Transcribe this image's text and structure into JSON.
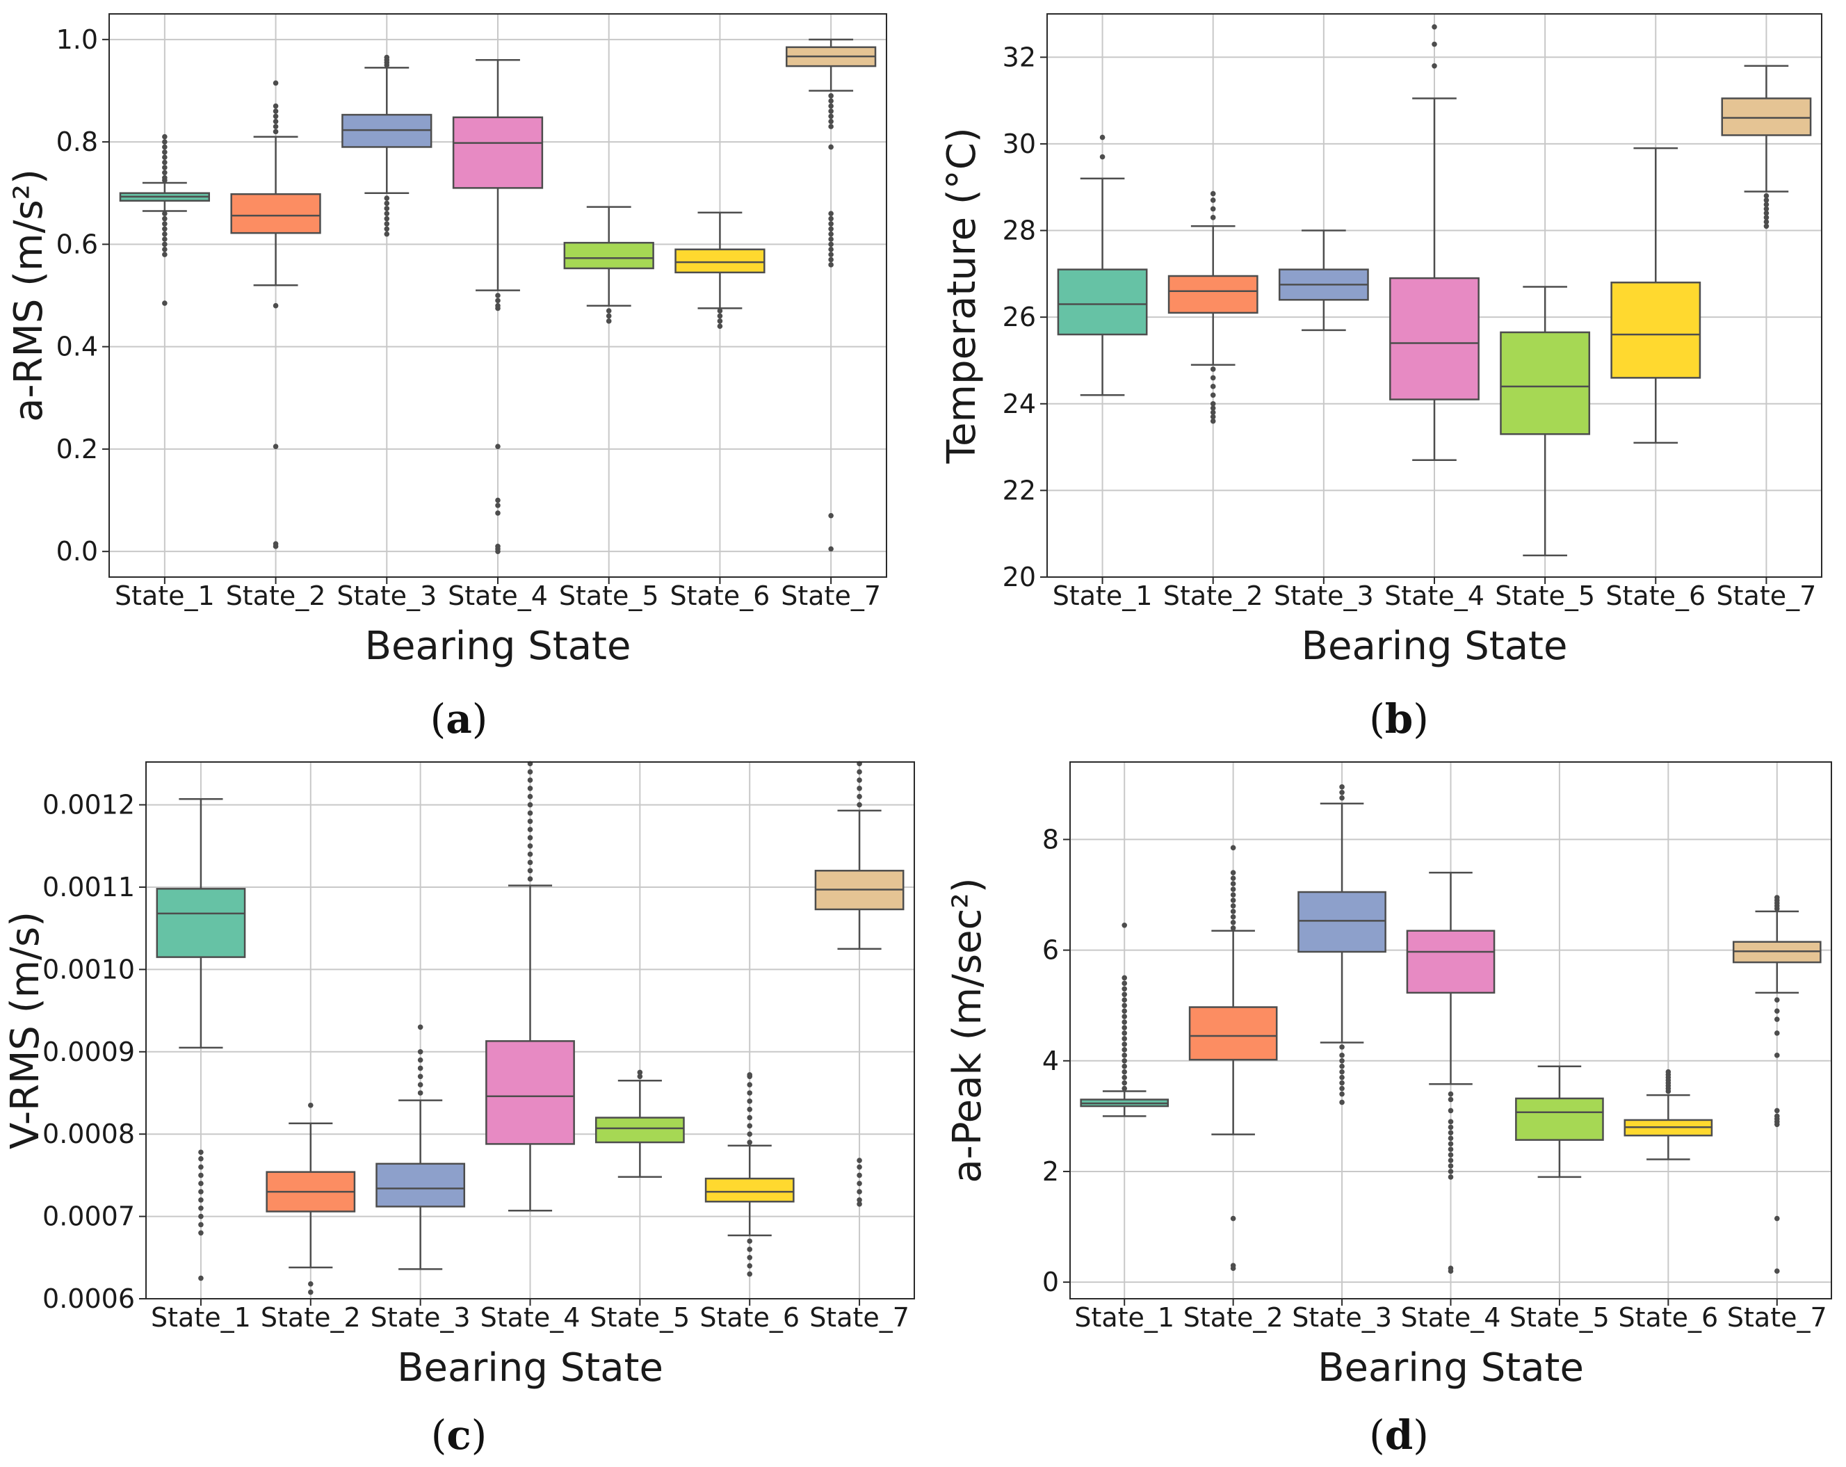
{
  "figure": {
    "captions": [
      {
        "open": "(",
        "letter": "a",
        "close": ")"
      },
      {
        "open": "(",
        "letter": "b",
        "close": ")"
      },
      {
        "open": "(",
        "letter": "c",
        "close": ")"
      },
      {
        "open": "(",
        "letter": "d",
        "close": ")"
      }
    ]
  },
  "chart_data": [
    {
      "type": "box",
      "id": "a",
      "xlabel": "Bearing State",
      "ylabel": "a-RMS (m/s²)",
      "ylim": [
        -0.05,
        1.05
      ],
      "yticks": [
        0.0,
        0.2,
        0.4,
        0.6,
        0.8,
        1.0
      ],
      "ytick_labels": [
        "0.0",
        "0.2",
        "0.4",
        "0.6",
        "0.8",
        "1.0"
      ],
      "categories": [
        "State_1",
        "State_2",
        "State_3",
        "State_4",
        "State_5",
        "State_6",
        "State_7"
      ],
      "colors": [
        "#66c2a5",
        "#fc8d62",
        "#8da0cb",
        "#e78ac3",
        "#a6d854",
        "#ffd92f",
        "#e5c494"
      ],
      "boxes": [
        {
          "low": 0.665,
          "q1": 0.685,
          "median": 0.693,
          "q3": 0.7,
          "high": 0.72,
          "outliers": [
            0.58,
            0.59,
            0.6,
            0.61,
            0.62,
            0.63,
            0.64,
            0.65,
            0.66,
            0.725,
            0.73,
            0.74,
            0.75,
            0.76,
            0.77,
            0.78,
            0.79,
            0.8,
            0.81,
            0.485
          ]
        },
        {
          "low": 0.52,
          "q1": 0.622,
          "median": 0.656,
          "q3": 0.698,
          "high": 0.81,
          "outliers": [
            0.48,
            0.205,
            0.01,
            0.015,
            0.82,
            0.83,
            0.84,
            0.85,
            0.86,
            0.87,
            0.915
          ]
        },
        {
          "low": 0.7,
          "q1": 0.79,
          "median": 0.823,
          "q3": 0.853,
          "high": 0.945,
          "outliers": [
            0.62,
            0.63,
            0.64,
            0.65,
            0.66,
            0.67,
            0.68,
            0.69,
            0.95,
            0.955,
            0.96,
            0.965
          ]
        },
        {
          "low": 0.51,
          "q1": 0.71,
          "median": 0.798,
          "q3": 0.848,
          "high": 0.96,
          "outliers": [
            0.475,
            0.48,
            0.49,
            0.5,
            0.205,
            0.1,
            0.09,
            0.075,
            0.01,
            0.005,
            0.0
          ]
        },
        {
          "low": 0.48,
          "q1": 0.553,
          "median": 0.573,
          "q3": 0.603,
          "high": 0.673,
          "outliers": [
            0.45,
            0.46,
            0.47
          ]
        },
        {
          "low": 0.475,
          "q1": 0.545,
          "median": 0.565,
          "q3": 0.59,
          "high": 0.662,
          "outliers": [
            0.44,
            0.45,
            0.46,
            0.47
          ]
        },
        {
          "low": 0.9,
          "q1": 0.948,
          "median": 0.967,
          "q3": 0.985,
          "high": 1.0,
          "outliers": [
            0.89,
            0.88,
            0.87,
            0.86,
            0.85,
            0.84,
            0.83,
            0.79,
            0.66,
            0.65,
            0.64,
            0.63,
            0.62,
            0.61,
            0.6,
            0.59,
            0.58,
            0.57,
            0.56,
            0.07,
            0.005
          ]
        }
      ]
    },
    {
      "type": "box",
      "id": "b",
      "xlabel": "Bearing State",
      "ylabel": "Temperature (°C)",
      "ylim": [
        20,
        33
      ],
      "yticks": [
        20,
        22,
        24,
        26,
        28,
        30,
        32
      ],
      "ytick_labels": [
        "20",
        "22",
        "24",
        "26",
        "28",
        "30",
        "32"
      ],
      "categories": [
        "State_1",
        "State_2",
        "State_3",
        "State_4",
        "State_5",
        "State_6",
        "State_7"
      ],
      "colors": [
        "#66c2a5",
        "#fc8d62",
        "#8da0cb",
        "#e78ac3",
        "#a6d854",
        "#ffd92f",
        "#e5c494"
      ],
      "boxes": [
        {
          "low": 24.2,
          "q1": 25.6,
          "median": 26.3,
          "q3": 27.1,
          "high": 29.2,
          "outliers": [
            29.7,
            30.15
          ]
        },
        {
          "low": 24.9,
          "q1": 26.1,
          "median": 26.6,
          "q3": 26.95,
          "high": 28.1,
          "outliers": [
            24.8,
            24.6,
            24.4,
            24.2,
            24.0,
            23.9,
            23.8,
            23.7,
            23.6,
            28.3,
            28.5,
            28.7,
            28.85
          ]
        },
        {
          "low": 25.7,
          "q1": 26.4,
          "median": 26.75,
          "q3": 27.1,
          "high": 28.0,
          "outliers": []
        },
        {
          "low": 22.7,
          "q1": 24.1,
          "median": 25.4,
          "q3": 26.9,
          "high": 31.05,
          "outliers": [
            31.8,
            32.3,
            32.7
          ]
        },
        {
          "low": 20.5,
          "q1": 23.3,
          "median": 24.4,
          "q3": 25.65,
          "high": 26.7,
          "outliers": []
        },
        {
          "low": 23.1,
          "q1": 24.6,
          "median": 25.6,
          "q3": 26.8,
          "high": 29.9,
          "outliers": []
        },
        {
          "low": 28.9,
          "q1": 30.2,
          "median": 30.6,
          "q3": 31.05,
          "high": 31.8,
          "outliers": [
            28.8,
            28.7,
            28.6,
            28.5,
            28.4,
            28.3,
            28.2,
            28.1
          ]
        }
      ]
    },
    {
      "type": "box",
      "id": "c",
      "xlabel": "Bearing State",
      "ylabel": "V-RMS (m/s)",
      "ylim": [
        0.0006,
        0.001252
      ],
      "yticks": [
        0.0006,
        0.0007,
        0.0008,
        0.0009,
        0.001,
        0.0011,
        0.0012
      ],
      "ytick_labels": [
        "0.0006",
        "0.0007",
        "0.0008",
        "0.0009",
        "0.0010",
        "0.0011",
        "0.0012"
      ],
      "categories": [
        "State_1",
        "State_2",
        "State_3",
        "State_4",
        "State_5",
        "State_6",
        "State_7"
      ],
      "colors": [
        "#66c2a5",
        "#fc8d62",
        "#8da0cb",
        "#e78ac3",
        "#a6d854",
        "#ffd92f",
        "#e5c494"
      ],
      "boxes": [
        {
          "low": 0.000905,
          "q1": 0.001015,
          "median": 0.001068,
          "q3": 0.001098,
          "high": 0.001207,
          "outliers": [
            0.000778,
            0.00077,
            0.00076,
            0.00075,
            0.00074,
            0.00073,
            0.00072,
            0.00071,
            0.0007,
            0.00069,
            0.00068,
            0.000625
          ]
        },
        {
          "low": 0.000638,
          "q1": 0.000706,
          "median": 0.00073,
          "q3": 0.000754,
          "high": 0.000813,
          "outliers": [
            0.000618,
            0.000608,
            0.000835
          ]
        },
        {
          "low": 0.000636,
          "q1": 0.000712,
          "median": 0.000734,
          "q3": 0.000764,
          "high": 0.000841,
          "outliers": [
            0.00085,
            0.00086,
            0.00087,
            0.00088,
            0.00089,
            0.0009,
            0.00093
          ]
        },
        {
          "low": 0.000707,
          "q1": 0.000788,
          "median": 0.000846,
          "q3": 0.000913,
          "high": 0.001102,
          "outliers": [
            0.00111,
            0.00112,
            0.00113,
            0.00114,
            0.00115,
            0.00116,
            0.00117,
            0.00118,
            0.00119,
            0.0012,
            0.00121,
            0.00122,
            0.00123,
            0.00124,
            0.00125
          ]
        },
        {
          "low": 0.000748,
          "q1": 0.00079,
          "median": 0.000807,
          "q3": 0.00082,
          "high": 0.000865,
          "outliers": [
            0.00087,
            0.000875
          ]
        },
        {
          "low": 0.000677,
          "q1": 0.000718,
          "median": 0.00073,
          "q3": 0.000746,
          "high": 0.000786,
          "outliers": [
            0.00067,
            0.00066,
            0.00065,
            0.00064,
            0.00063,
            0.00079,
            0.0008,
            0.00081,
            0.00082,
            0.00083,
            0.00084,
            0.00085,
            0.00086,
            0.00087,
            0.000872
          ]
        },
        {
          "low": 0.001025,
          "q1": 0.001073,
          "median": 0.001097,
          "q3": 0.00112,
          "high": 0.001193,
          "outliers": [
            0.0012,
            0.00121,
            0.00122,
            0.00123,
            0.00124,
            0.00125,
            0.000768,
            0.00076,
            0.00075,
            0.00074,
            0.00073,
            0.00072,
            0.000715
          ]
        }
      ]
    },
    {
      "type": "box",
      "id": "d",
      "xlabel": "Bearing State",
      "ylabel": "a-Peak (m/sec²)",
      "ylim": [
        -0.3,
        9.4
      ],
      "yticks": [
        0,
        2,
        4,
        6,
        8
      ],
      "ytick_labels": [
        "0",
        "2",
        "4",
        "6",
        "8"
      ],
      "categories": [
        "State_1",
        "State_2",
        "State_3",
        "State_4",
        "State_5",
        "State_6",
        "State_7"
      ],
      "colors": [
        "#66c2a5",
        "#fc8d62",
        "#8da0cb",
        "#e78ac3",
        "#a6d854",
        "#ffd92f",
        "#e5c494"
      ],
      "boxes": [
        {
          "low": 3.0,
          "q1": 3.18,
          "median": 3.23,
          "q3": 3.3,
          "high": 3.45,
          "outliers": [
            3.5,
            3.6,
            3.7,
            3.8,
            3.9,
            4.0,
            4.1,
            4.2,
            4.3,
            4.4,
            4.5,
            4.6,
            4.7,
            4.8,
            4.9,
            5.0,
            5.1,
            5.2,
            5.3,
            5.4,
            5.5,
            6.45
          ]
        },
        {
          "low": 2.67,
          "q1": 4.02,
          "median": 4.45,
          "q3": 4.97,
          "high": 6.35,
          "outliers": [
            6.4,
            6.5,
            6.6,
            6.7,
            6.8,
            6.9,
            7.0,
            7.1,
            7.2,
            7.3,
            7.4,
            7.85,
            1.15,
            0.3,
            0.25
          ]
        },
        {
          "low": 4.33,
          "q1": 5.97,
          "median": 6.53,
          "q3": 7.05,
          "high": 8.65,
          "outliers": [
            4.25,
            4.1,
            4.0,
            3.9,
            3.8,
            3.7,
            3.6,
            3.5,
            3.4,
            3.25,
            8.75,
            8.85,
            8.95
          ]
        },
        {
          "low": 3.58,
          "q1": 5.23,
          "median": 5.97,
          "q3": 6.35,
          "high": 7.4,
          "outliers": [
            3.4,
            3.3,
            3.1,
            2.9,
            2.8,
            2.7,
            2.6,
            2.5,
            2.4,
            2.3,
            2.2,
            2.1,
            2.0,
            1.9,
            0.25,
            0.2
          ]
        },
        {
          "low": 1.9,
          "q1": 2.57,
          "median": 3.07,
          "q3": 3.32,
          "high": 3.9,
          "outliers": []
        },
        {
          "low": 2.22,
          "q1": 2.65,
          "median": 2.8,
          "q3": 2.93,
          "high": 3.38,
          "outliers": [
            3.45,
            3.5,
            3.55,
            3.6,
            3.65,
            3.7,
            3.75,
            3.8
          ]
        },
        {
          "low": 5.23,
          "q1": 5.78,
          "median": 5.98,
          "q3": 6.15,
          "high": 6.7,
          "outliers": [
            6.75,
            6.8,
            6.85,
            6.9,
            6.95,
            5.1,
            4.9,
            4.75,
            4.5,
            4.1,
            3.1,
            3.0,
            2.95,
            2.9,
            2.85,
            1.15,
            0.2
          ]
        }
      ]
    }
  ]
}
